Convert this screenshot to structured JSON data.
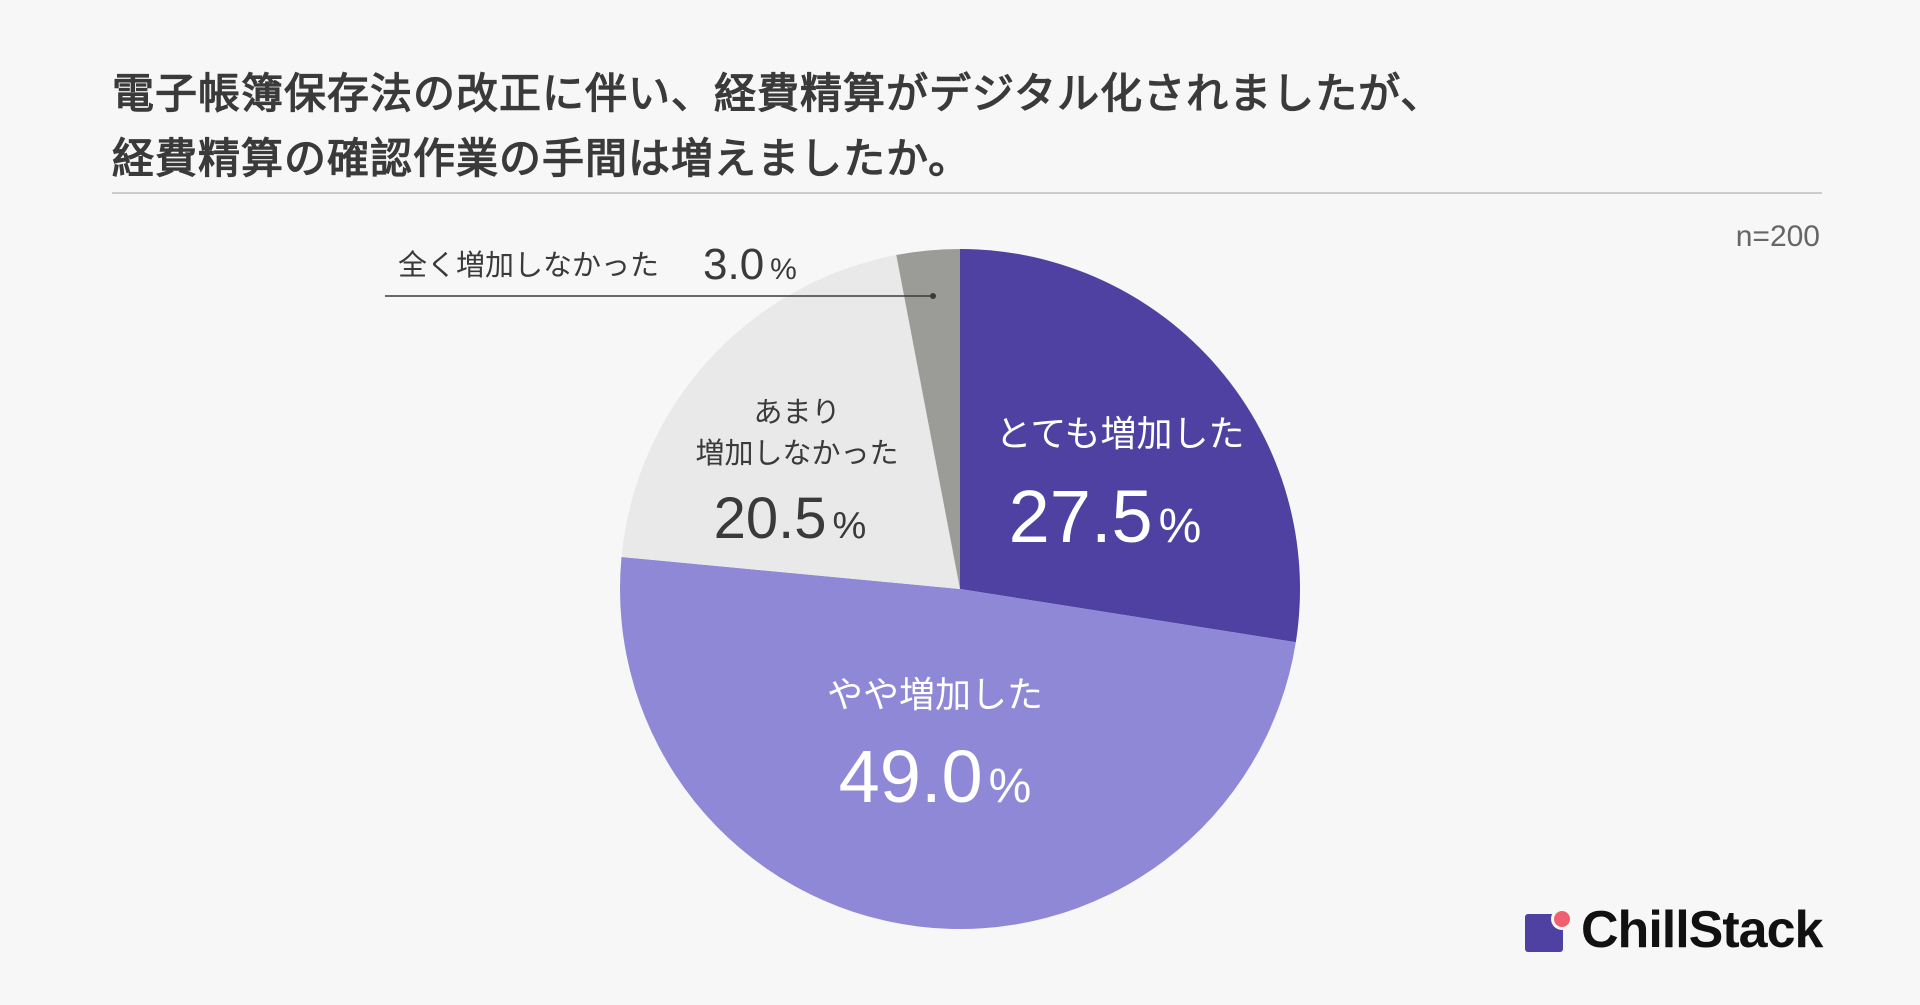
{
  "title": {
    "line1": "電子帳簿保存法の改正に伴い、経費精算がデジタル化されましたが、",
    "line2": "経費精算の確認作業の手間は増えましたか。"
  },
  "sample_size": "n=200",
  "logo": {
    "text": "ChillStack"
  },
  "chart_data": {
    "type": "pie",
    "start_angle": "12 o'clock",
    "direction": "clockwise",
    "slices": [
      {
        "label": "とても増加した",
        "value": 27.5,
        "display": "27.5",
        "color": "#4e41a1",
        "text_color": "#ffffff"
      },
      {
        "label": "やや増加した",
        "value": 49.0,
        "display": "49.0",
        "color": "#8f88d6",
        "text_color": "#ffffff"
      },
      {
        "label_lines": [
          "あまり",
          "増加しなかった"
        ],
        "value": 20.5,
        "display": "20.5",
        "color": "#e9e9e9",
        "text_color": "#3a3a3a"
      },
      {
        "label": "全く増加しなかった",
        "value": 3.0,
        "display": "3.0",
        "color": "#9b9c97",
        "text_color": "#3a3a3a",
        "callout": true
      }
    ],
    "unit": "%"
  }
}
